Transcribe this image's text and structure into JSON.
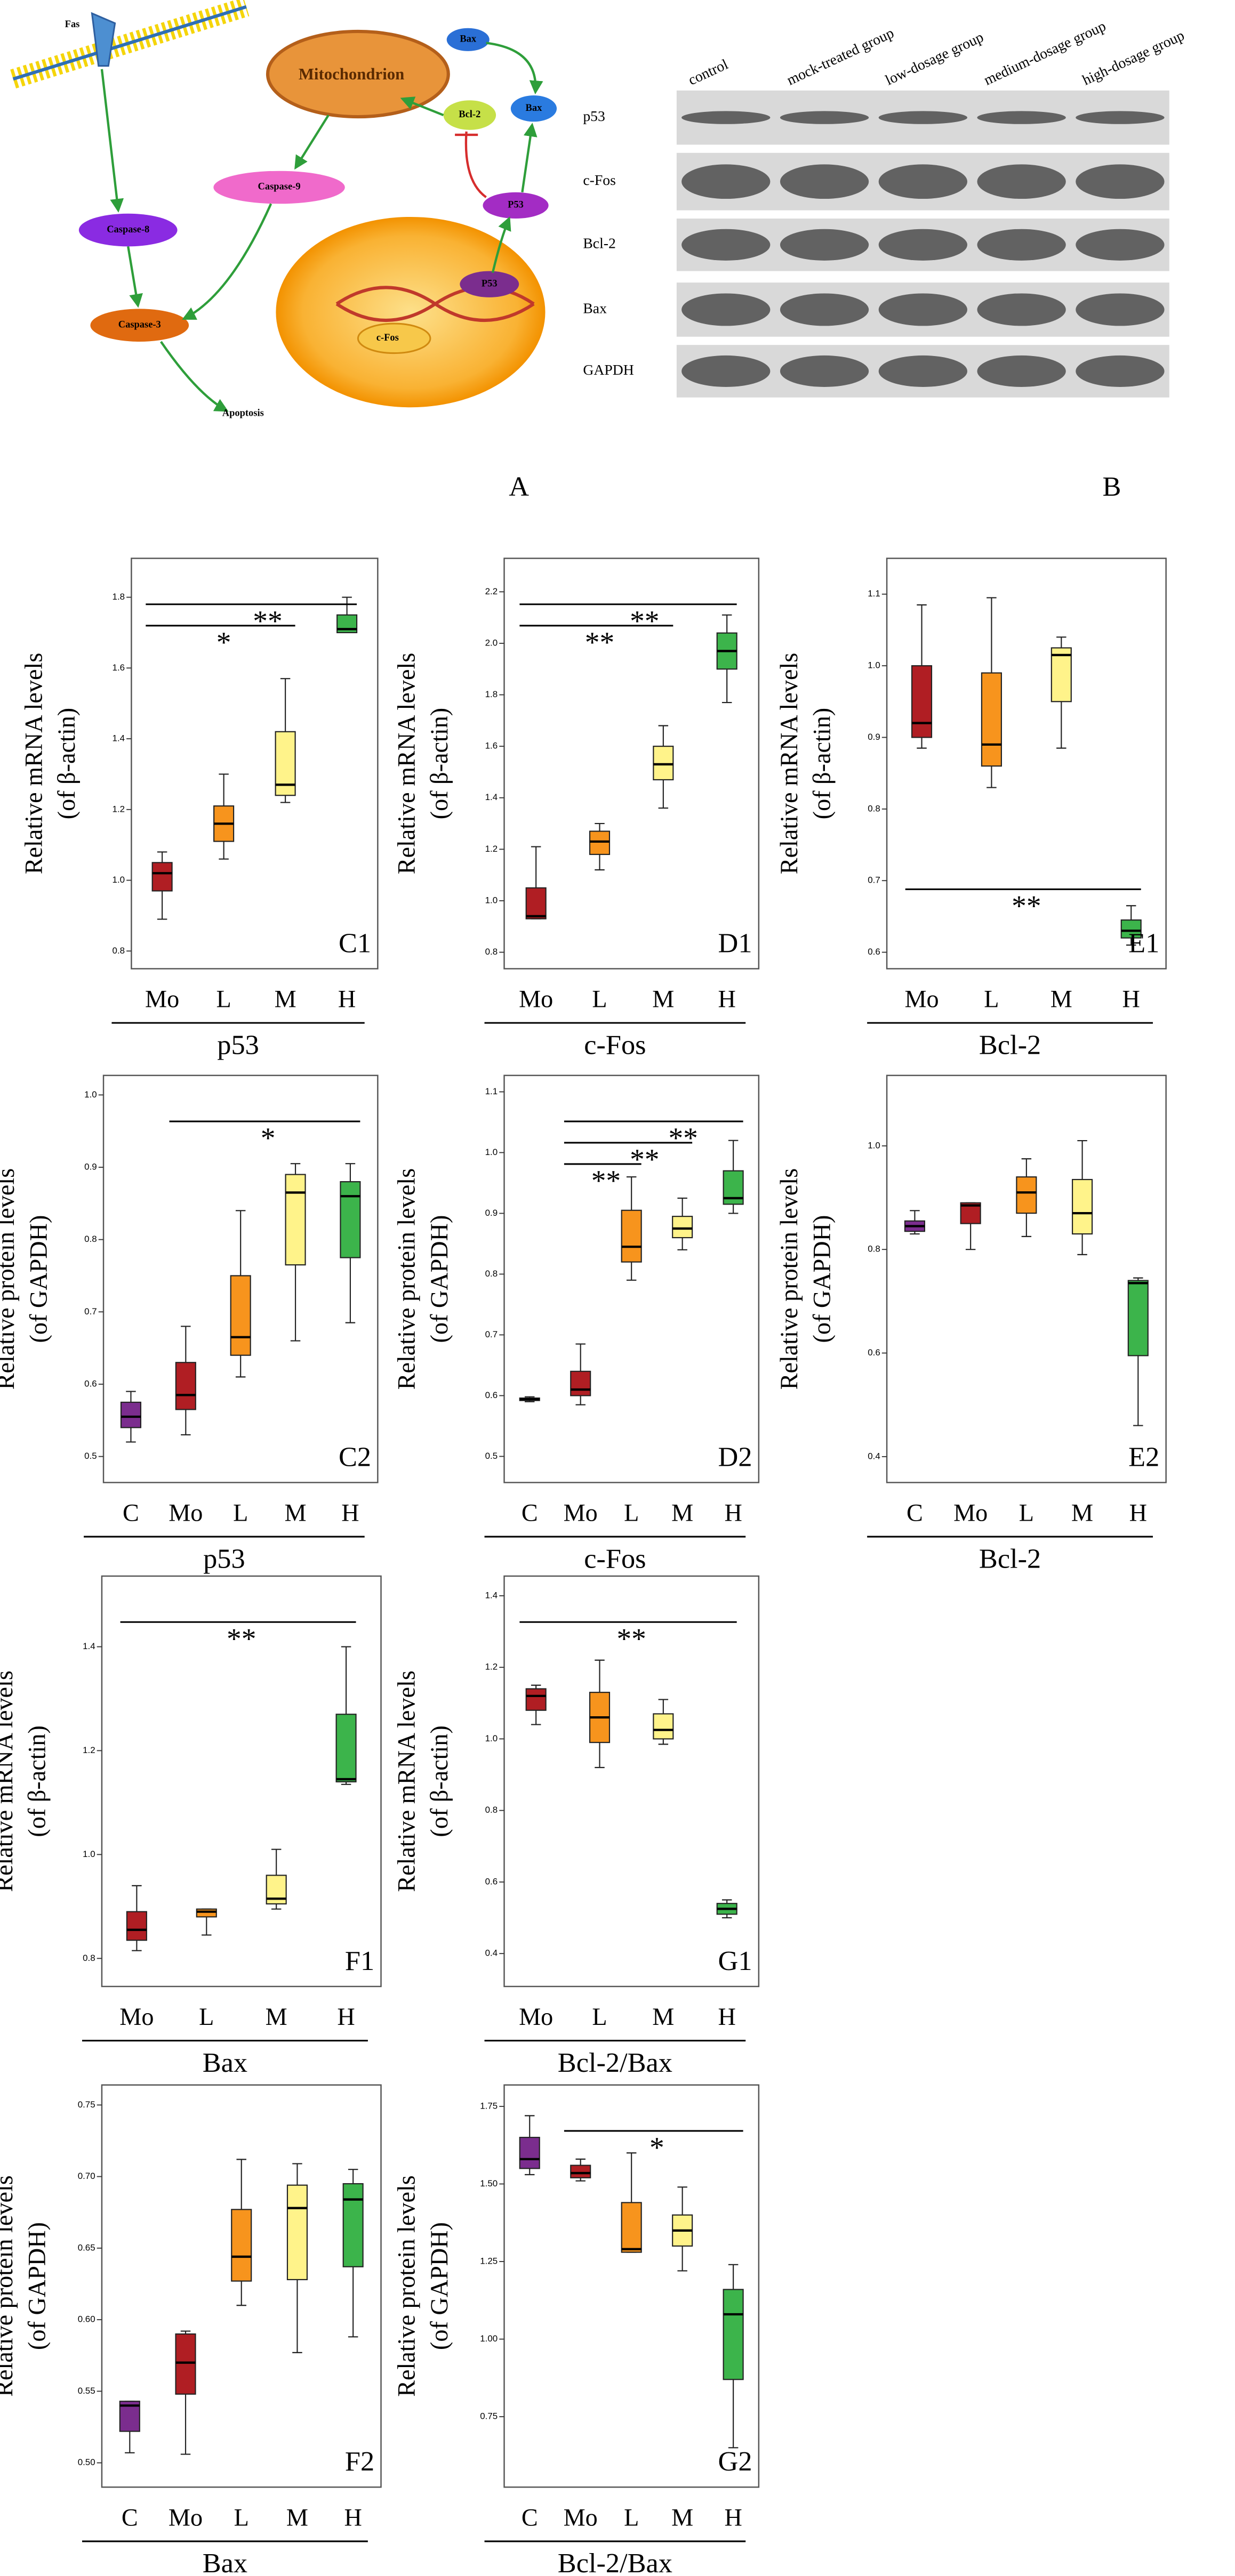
{
  "diagram": {
    "label": "A",
    "fas": "Fas",
    "mitochondrion": "Mitochondrion",
    "bax_top": "Bax",
    "bcl2": "Bcl-2",
    "bax": "Bax",
    "caspase9": "Caspase-9",
    "caspase8": "Caspase-8",
    "caspase3": "Caspase-3",
    "p53_cyto": "P53",
    "p53_nucleus": "P53",
    "cfos": "c-Fos",
    "apoptosis": "Apoptosis"
  },
  "blot": {
    "label": "B",
    "lanes": [
      "control",
      "mock-treated group",
      "low-dosage group",
      "medium-dosage group",
      "high-dosage group"
    ],
    "rows": [
      "p53",
      "c-Fos",
      "Bcl-2",
      "Bax",
      "GAPDH"
    ]
  },
  "chart_data": [
    {
      "type": "box",
      "panel": "C1",
      "ylabel": [
        "Relative mRNA levels",
        "(of β-actin)"
      ],
      "xlabel": "p53",
      "categories": [
        "Mo",
        "L",
        "M",
        "H"
      ],
      "colors": [
        "#b01e23",
        "#f7941d",
        "#fff38a",
        "#3cb44b"
      ],
      "boxes": [
        {
          "min": 0.89,
          "q1": 0.97,
          "median": 1.02,
          "q3": 1.05,
          "max": 1.08
        },
        {
          "min": 1.06,
          "q1": 1.11,
          "median": 1.16,
          "q3": 1.21,
          "max": 1.3
        },
        {
          "min": 1.22,
          "q1": 1.24,
          "median": 1.27,
          "q3": 1.42,
          "max": 1.57
        },
        {
          "min": 1.7,
          "q1": 1.7,
          "median": 1.71,
          "q3": 1.75,
          "max": 1.8
        }
      ],
      "ylim": [
        0.75,
        1.91
      ],
      "yticks": [
        0.8,
        {
          "value": 1,
          "label": "1.0"
        },
        1.2,
        1.4,
        1.6,
        1.8
      ],
      "brackets": [
        {
          "from": "Mo",
          "to": "M",
          "label": "*"
        },
        {
          "from": "Mo",
          "to": "H",
          "label": "**"
        }
      ]
    },
    {
      "type": "box",
      "panel": "D1",
      "ylabel": [
        "Relative mRNA levels",
        "(of β-actin)"
      ],
      "xlabel": "c-Fos",
      "categories": [
        "Mo",
        "L",
        "M",
        "H"
      ],
      "colors": [
        "#b01e23",
        "#f7941d",
        "#fff38a",
        "#3cb44b"
      ],
      "boxes": [
        {
          "min": 0.93,
          "q1": 0.93,
          "median": 0.94,
          "q3": 1.05,
          "max": 1.21
        },
        {
          "min": 1.12,
          "q1": 1.18,
          "median": 1.23,
          "q3": 1.27,
          "max": 1.3
        },
        {
          "min": 1.36,
          "q1": 1.47,
          "median": 1.53,
          "q3": 1.6,
          "max": 1.68
        },
        {
          "min": 1.77,
          "q1": 1.9,
          "median": 1.97,
          "q3": 2.04,
          "max": 2.11
        }
      ],
      "ylim": [
        0.736,
        2.33
      ],
      "yticks": [
        0.8,
        {
          "value": 1,
          "label": "1.0"
        },
        1.2,
        1.4,
        1.6,
        1.8,
        {
          "value": 2,
          "label": "2.0"
        },
        2.2
      ],
      "brackets": [
        {
          "from": "Mo",
          "to": "M",
          "label": "**"
        },
        {
          "from": "Mo",
          "to": "H",
          "label": "**"
        }
      ]
    },
    {
      "type": "box",
      "panel": "E1",
      "ylabel": [
        "Relative mRNA levels",
        "(of β-actin)"
      ],
      "xlabel": "Bcl-2",
      "categories": [
        "Mo",
        "L",
        "M",
        "H"
      ],
      "colors": [
        "#b01e23",
        "#f7941d",
        "#fff38a",
        "#3cb44b"
      ],
      "boxes": [
        {
          "min": 0.885,
          "q1": 0.9,
          "median": 0.92,
          "q3": 1.0,
          "max": 1.085
        },
        {
          "min": 0.83,
          "q1": 0.86,
          "median": 0.89,
          "q3": 0.99,
          "max": 1.095
        },
        {
          "min": 0.885,
          "q1": 0.95,
          "median": 1.015,
          "q3": 1.025,
          "max": 1.04
        },
        {
          "min": 0.61,
          "q1": 0.62,
          "median": 0.63,
          "q3": 0.645,
          "max": 0.665
        }
      ],
      "ylim": [
        0.577,
        1.15
      ],
      "yticks": [
        0.6,
        0.7,
        0.8,
        0.9,
        {
          "value": 1,
          "label": "1.0"
        },
        1.1
      ],
      "brackets": [
        {
          "from": "Mo",
          "to": "H",
          "label": "**"
        }
      ]
    },
    {
      "type": "box",
      "panel": "C2",
      "ylabel": [
        "Relative protein levels",
        "(of GAPDH)"
      ],
      "xlabel": "p53",
      "categories": [
        "C",
        "Mo",
        "L",
        "M",
        "H"
      ],
      "colors": [
        "#7b2d8e",
        "#b01e23",
        "#f7941d",
        "#fff38a",
        "#3cb44b"
      ],
      "boxes": [
        {
          "min": 0.52,
          "q1": 0.54,
          "median": 0.555,
          "q3": 0.575,
          "max": 0.59
        },
        {
          "min": 0.53,
          "q1": 0.565,
          "median": 0.585,
          "q3": 0.63,
          "max": 0.68
        },
        {
          "min": 0.61,
          "q1": 0.64,
          "median": 0.665,
          "q3": 0.75,
          "max": 0.84
        },
        {
          "min": 0.66,
          "q1": 0.765,
          "median": 0.865,
          "q3": 0.89,
          "max": 0.905
        },
        {
          "min": 0.685,
          "q1": 0.775,
          "median": 0.86,
          "q3": 0.88,
          "max": 0.905
        }
      ],
      "ylim": [
        0.464,
        1.027
      ],
      "yticks": [
        0.5,
        0.6,
        0.7,
        0.8,
        0.9,
        {
          "value": 1,
          "label": "1.0"
        }
      ],
      "brackets": [
        {
          "from": "Mo",
          "to": "H",
          "label": "*"
        }
      ]
    },
    {
      "type": "box",
      "panel": "D2",
      "ylabel": [
        "Relative protein levels",
        "(of GAPDH)"
      ],
      "xlabel": "c-Fos",
      "categories": [
        "C",
        "Mo",
        "L",
        "M",
        "H"
      ],
      "colors": [
        "#7b2d8e",
        "#b01e23",
        "#f7941d",
        "#fff38a",
        "#3cb44b"
      ],
      "boxes": [
        {
          "min": 0.59,
          "q1": 0.592,
          "median": 0.594,
          "q3": 0.596,
          "max": 0.598
        },
        {
          "min": 0.585,
          "q1": 0.6,
          "median": 0.61,
          "q3": 0.64,
          "max": 0.685
        },
        {
          "min": 0.79,
          "q1": 0.82,
          "median": 0.845,
          "q3": 0.905,
          "max": 0.96
        },
        {
          "min": 0.84,
          "q1": 0.86,
          "median": 0.875,
          "q3": 0.895,
          "max": 0.925
        },
        {
          "min": 0.9,
          "q1": 0.915,
          "median": 0.925,
          "q3": 0.97,
          "max": 1.02
        }
      ],
      "ylim": [
        0.457,
        1.127
      ],
      "yticks": [
        0.5,
        0.6,
        0.7,
        0.8,
        0.9,
        {
          "value": 1,
          "label": "1.0"
        },
        1.1
      ],
      "brackets": [
        {
          "from": "Mo",
          "to": "L",
          "label": "**"
        },
        {
          "from": "Mo",
          "to": "M",
          "label": "**"
        },
        {
          "from": "Mo",
          "to": "H",
          "label": "**"
        }
      ]
    },
    {
      "type": "box",
      "panel": "E2",
      "ylabel": [
        "Relative protein levels",
        "(of GAPDH)"
      ],
      "xlabel": "Bcl-2",
      "categories": [
        "C",
        "Mo",
        "L",
        "M",
        "H"
      ],
      "colors": [
        "#7b2d8e",
        "#b01e23",
        "#f7941d",
        "#fff38a",
        "#3cb44b"
      ],
      "boxes": [
        {
          "min": 0.83,
          "q1": 0.835,
          "median": 0.845,
          "q3": 0.855,
          "max": 0.875
        },
        {
          "min": 0.8,
          "q1": 0.85,
          "median": 0.885,
          "q3": 0.89,
          "max": 0.89
        },
        {
          "min": 0.825,
          "q1": 0.87,
          "median": 0.91,
          "q3": 0.94,
          "max": 0.975
        },
        {
          "min": 0.79,
          "q1": 0.83,
          "median": 0.87,
          "q3": 0.935,
          "max": 1.01
        },
        {
          "min": 0.46,
          "q1": 0.595,
          "median": 0.735,
          "q3": 0.74,
          "max": 0.745
        }
      ],
      "ylim": [
        0.35,
        1.136
      ],
      "yticks": [
        0.4,
        0.6,
        0.8,
        {
          "value": 1,
          "label": "1.0"
        }
      ],
      "brackets": []
    },
    {
      "type": "box",
      "panel": "F1",
      "ylabel": [
        "Relative mRNA levels",
        "(of β-actin)"
      ],
      "xlabel": "Bax",
      "categories": [
        "Mo",
        "L",
        "M",
        "H"
      ],
      "colors": [
        "#b01e23",
        "#f7941d",
        "#fff38a",
        "#3cb44b"
      ],
      "boxes": [
        {
          "min": 0.815,
          "q1": 0.835,
          "median": 0.855,
          "q3": 0.89,
          "max": 0.94
        },
        {
          "min": 0.845,
          "q1": 0.88,
          "median": 0.89,
          "q3": 0.895,
          "max": 0.895
        },
        {
          "min": 0.895,
          "q1": 0.905,
          "median": 0.915,
          "q3": 0.96,
          "max": 1.01
        },
        {
          "min": 1.135,
          "q1": 1.14,
          "median": 1.145,
          "q3": 1.27,
          "max": 1.4
        }
      ],
      "ylim": [
        0.746,
        1.536
      ],
      "yticks": [
        0.8,
        {
          "value": 1,
          "label": "1.0"
        },
        1.2,
        1.4
      ],
      "brackets": [
        {
          "from": "Mo",
          "to": "H",
          "label": "**"
        }
      ]
    },
    {
      "type": "box",
      "panel": "G1",
      "ylabel": [
        "Relative mRNA levels",
        "(of β-actin)"
      ],
      "xlabel": "Bcl-2/Bax",
      "categories": [
        "Mo",
        "L",
        "M",
        "H"
      ],
      "colors": [
        "#b01e23",
        "#f7941d",
        "#fff38a",
        "#3cb44b"
      ],
      "boxes": [
        {
          "min": 1.04,
          "q1": 1.08,
          "median": 1.12,
          "q3": 1.14,
          "max": 1.15
        },
        {
          "min": 0.92,
          "q1": 0.99,
          "median": 1.06,
          "q3": 1.13,
          "max": 1.22
        },
        {
          "min": 0.985,
          "q1": 1.0,
          "median": 1.025,
          "q3": 1.07,
          "max": 1.11
        },
        {
          "min": 0.5,
          "q1": 0.51,
          "median": 0.525,
          "q3": 0.54,
          "max": 0.55
        }
      ],
      "ylim": [
        0.308,
        1.455
      ],
      "yticks": [
        0.4,
        0.6,
        0.8,
        {
          "value": 1,
          "label": "1.0"
        },
        1.2,
        1.4
      ],
      "brackets": [
        {
          "from": "Mo",
          "to": "H",
          "label": "**"
        }
      ]
    },
    {
      "type": "box",
      "panel": "F2",
      "ylabel": [
        "Relative protein levels",
        "(of GAPDH)"
      ],
      "xlabel": "Bax",
      "categories": [
        "C",
        "Mo",
        "L",
        "M",
        "H"
      ],
      "colors": [
        "#7b2d8e",
        "#b01e23",
        "#f7941d",
        "#fff38a",
        "#3cb44b"
      ],
      "boxes": [
        {
          "min": 0.507,
          "q1": 0.522,
          "median": 0.54,
          "q3": 0.543,
          "max": 0.543
        },
        {
          "min": 0.506,
          "q1": 0.548,
          "median": 0.57,
          "q3": 0.59,
          "max": 0.592
        },
        {
          "min": 0.61,
          "q1": 0.627,
          "median": 0.644,
          "q3": 0.677,
          "max": 0.712
        },
        {
          "min": 0.577,
          "q1": 0.628,
          "median": 0.678,
          "q3": 0.694,
          "max": 0.709
        },
        {
          "min": 0.588,
          "q1": 0.637,
          "median": 0.684,
          "q3": 0.695,
          "max": 0.705
        }
      ],
      "ylim": [
        0.483,
        0.764
      ],
      "yticks": [
        {
          "value": 0.5,
          "label": "0.50"
        },
        0.55,
        {
          "value": 0.6,
          "label": "0.60"
        },
        0.65,
        {
          "value": 0.7,
          "label": "0.70"
        },
        0.75
      ],
      "brackets": []
    },
    {
      "type": "box",
      "panel": "G2",
      "ylabel": [
        "Relative protein levels",
        "(of GAPDH)"
      ],
      "xlabel": "Bcl-2/Bax",
      "categories": [
        "C",
        "Mo",
        "L",
        "M",
        "H"
      ],
      "colors": [
        "#7b2d8e",
        "#b01e23",
        "#f7941d",
        "#fff38a",
        "#3cb44b"
      ],
      "boxes": [
        {
          "min": 1.53,
          "q1": 1.55,
          "median": 1.58,
          "q3": 1.65,
          "max": 1.72
        },
        {
          "min": 1.51,
          "q1": 1.52,
          "median": 1.535,
          "q3": 1.56,
          "max": 1.58
        },
        {
          "min": 1.28,
          "q1": 1.28,
          "median": 1.29,
          "q3": 1.44,
          "max": 1.6
        },
        {
          "min": 1.22,
          "q1": 1.3,
          "median": 1.35,
          "q3": 1.4,
          "max": 1.49
        },
        {
          "min": 0.65,
          "q1": 0.87,
          "median": 1.08,
          "q3": 1.16,
          "max": 1.24
        }
      ],
      "ylim": [
        0.523,
        1.819
      ],
      "yticks": [
        0.75,
        {
          "value": 1,
          "label": "1.00"
        },
        1.25,
        {
          "value": 1.5,
          "label": "1.50"
        },
        1.75
      ],
      "brackets": [
        {
          "from": "Mo",
          "to": "H",
          "label": "*"
        }
      ]
    }
  ]
}
